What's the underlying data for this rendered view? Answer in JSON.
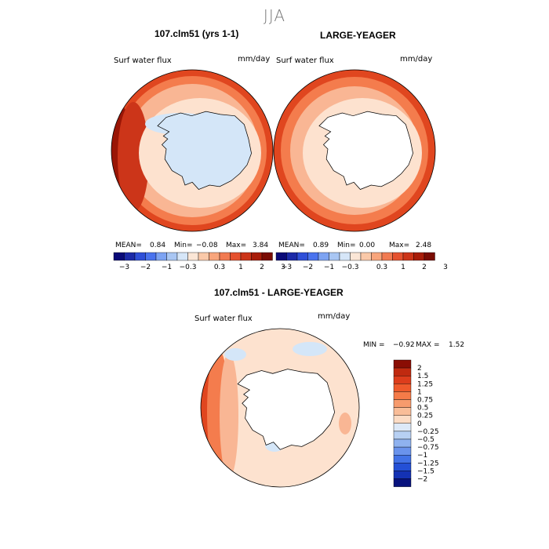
{
  "season": "JJA",
  "panels": [
    {
      "title": "107.clm51 (yrs 1-1)",
      "variable": "Surf water flux",
      "units": "mm/day",
      "stats": {
        "mean_label": "MEAN=",
        "mean": "0.84",
        "min_label": "Min=",
        "min": "−0.08",
        "max_label": "Max=",
        "max": "3.84"
      }
    },
    {
      "title": "LARGE-YEAGER",
      "variable": "Surf water flux",
      "units": "mm/day",
      "stats": {
        "mean_label": "MEAN=",
        "mean": "0.89",
        "min_label": "Min=",
        "min": "0.00",
        "max_label": "Max=",
        "max": "2.48"
      }
    }
  ],
  "top_colorbar": {
    "labels": [
      "−3",
      "−2",
      "−1",
      "−0.3",
      "0.3",
      "1",
      "2",
      "3"
    ],
    "colors": [
      "#0a0a78",
      "#1c2aa8",
      "#2f4fd8",
      "#4a73ee",
      "#7da3f2",
      "#a9c6f3",
      "#d6e6f8",
      "#fbe6d6",
      "#fac9a9",
      "#f8a57c",
      "#f17b52",
      "#e5522f",
      "#cc3519",
      "#a81d0a",
      "#7a0c04"
    ]
  },
  "diff_panel": {
    "title": "107.clm51 - LARGE-YEAGER",
    "variable": "Surf water flux",
    "units": "mm/day",
    "range": {
      "min_label": "MIN =",
      "min": "−0.92",
      "max_label": "MAX =",
      "max": "1.52"
    }
  },
  "diff_colorbar": {
    "labels": [
      "2",
      "1.5",
      "1.25",
      "1",
      "0.75",
      "0.5",
      "0.25",
      "0",
      "−0.25",
      "−0.5",
      "−0.75",
      "−1",
      "−1.25",
      "−1.5",
      "−2"
    ],
    "colors": [
      "#8a0d04",
      "#c02a10",
      "#dd3d1c",
      "#ef5a2c",
      "#f57b48",
      "#f79b6d",
      "#f9bd98",
      "#fcdcc5",
      "#dde9f8",
      "#b7d0f3",
      "#8fb2ef",
      "#6a93ec",
      "#4272e6",
      "#2450d6",
      "#1432b4",
      "#08137e"
    ]
  },
  "colors": {
    "ocean_strong": "#e0461f",
    "ocean_mid": "#f47c4d",
    "ocean_light": "#f9b694",
    "ocean_pale": "#fde2cf",
    "ice_blue": "#d4e6f8",
    "deep_red": "#9a1606"
  }
}
